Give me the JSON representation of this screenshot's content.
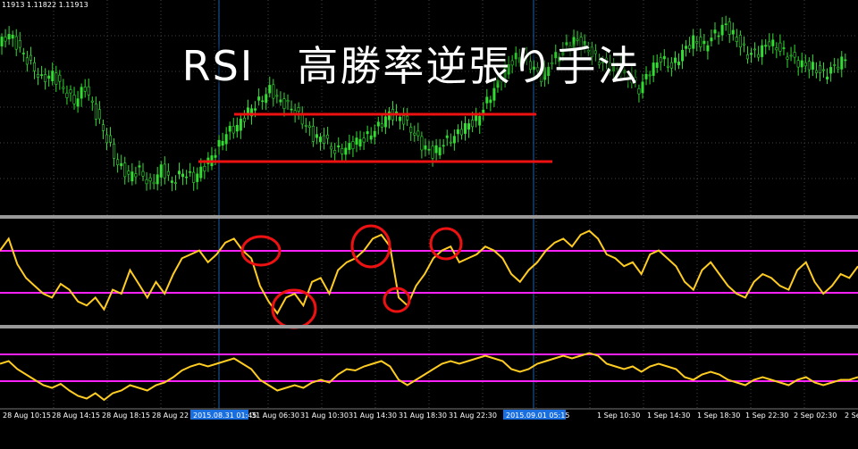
{
  "header": {
    "ohlc_text": "11913 1.11822 1.11913"
  },
  "title": "RSI　高勝率逆張り手法",
  "colors": {
    "background": "#000000",
    "candle": "#33dd33",
    "rsi_line": "#ffcc22",
    "level_line": "#ff22ff",
    "support_line": "#ee1111",
    "circle": "#ee1111",
    "separator": "#999999",
    "vline": "#1a5fb0",
    "grid": "#555555",
    "highlight_label_bg": "#1a6fe0"
  },
  "chart_data": [
    {
      "type": "line",
      "panel": "price",
      "description_series": "EUR/USD candles (approximate close path)",
      "horizontal_lines": [
        "upper",
        "lower"
      ],
      "series": [
        {
          "values": [
            1.1195,
            1.1205,
            1.1192,
            1.118,
            1.1168,
            1.1172,
            1.116,
            1.115,
            1.1162,
            1.114,
            1.112,
            1.11,
            1.109,
            1.1095,
            1.1082,
            1.1096,
            1.1085,
            1.1093,
            1.1088,
            1.1098,
            1.111,
            1.1125,
            1.113,
            1.1142,
            1.115,
            1.116,
            1.115,
            1.1145,
            1.1135,
            1.1122,
            1.112,
            1.111,
            1.1112,
            1.1118,
            1.1122,
            1.113,
            1.114,
            1.1138,
            1.1128,
            1.1115,
            1.1108,
            1.1117,
            1.1122,
            1.113,
            1.1135,
            1.115,
            1.1165,
            1.118,
            1.1188,
            1.118,
            1.117,
            1.1183,
            1.1192,
            1.12,
            1.1195,
            1.1185,
            1.118,
            1.1176,
            1.117,
            1.116,
            1.1175,
            1.1185,
            1.1178,
            1.119,
            1.12,
            1.1195,
            1.1205,
            1.1212,
            1.12,
            1.1188,
            1.119,
            1.1198,
            1.1192,
            1.1186,
            1.118,
            1.1178,
            1.1172,
            1.1178,
            1.1185
          ]
        }
      ]
    },
    {
      "type": "line",
      "panel": "rsi-upper",
      "horizontal_levels": [
        "upper",
        "lower"
      ],
      "series": [
        {
          "values": [
            62,
            68,
            55,
            48,
            44,
            40,
            38,
            45,
            42,
            36,
            34,
            38,
            32,
            42,
            40,
            52,
            45,
            38,
            46,
            40,
            50,
            58,
            60,
            62,
            56,
            60,
            66,
            68,
            62,
            58,
            44,
            36,
            30,
            38,
            40,
            34,
            46,
            48,
            40,
            52,
            56,
            58,
            62,
            68,
            70,
            64,
            38,
            34,
            44,
            50,
            58,
            62,
            64,
            56,
            58,
            60,
            64,
            62,
            58,
            50,
            46,
            52,
            56,
            62,
            66,
            68,
            64,
            70,
            72,
            68,
            60,
            58,
            54,
            56,
            50,
            60,
            62,
            58,
            54,
            46,
            42,
            52,
            56,
            50,
            44,
            40,
            38,
            46,
            50,
            48,
            44,
            42,
            52,
            56,
            46,
            40,
            44,
            50,
            48,
            54
          ]
        }
      ]
    },
    {
      "type": "line",
      "panel": "rsi-lower",
      "horizontal_levels": [
        "upper",
        "lower"
      ],
      "series": [
        {
          "values": [
            60,
            62,
            56,
            52,
            48,
            44,
            42,
            45,
            40,
            36,
            34,
            38,
            33,
            38,
            40,
            44,
            42,
            40,
            44,
            46,
            50,
            55,
            58,
            60,
            58,
            60,
            62,
            64,
            60,
            56,
            48,
            44,
            40,
            42,
            44,
            42,
            46,
            48,
            46,
            52,
            56,
            55,
            58,
            60,
            62,
            58,
            48,
            44,
            48,
            52,
            56,
            60,
            62,
            60,
            62,
            64,
            66,
            64,
            62,
            56,
            54,
            56,
            60,
            62,
            64,
            66,
            64,
            66,
            68,
            66,
            60,
            58,
            56,
            58,
            54,
            58,
            60,
            58,
            56,
            50,
            48,
            52,
            54,
            52,
            48,
            46,
            44,
            48,
            50,
            48,
            46,
            44,
            48,
            50,
            46,
            44,
            46,
            48,
            48,
            50
          ]
        }
      ]
    }
  ],
  "time_axis": {
    "ticks": [
      "28 Aug 10:15",
      "28 Aug 14:15",
      "28 Aug 18:15",
      "28 Aug 22",
      "31 Aug 06:30",
      "31 Aug 10:30",
      "31 Aug 14:30",
      "31 Aug 18:30",
      "31 Aug 22:30",
      "1 Sep 10:30",
      "1 Sep 14:30",
      "1 Sep 18:30",
      "1 Sep 22:30",
      "2 Sep 02:30",
      "2 Se"
    ],
    "highlight_labels": [
      "2015.08.31 01:45",
      "2015.09.01 05:15"
    ]
  }
}
